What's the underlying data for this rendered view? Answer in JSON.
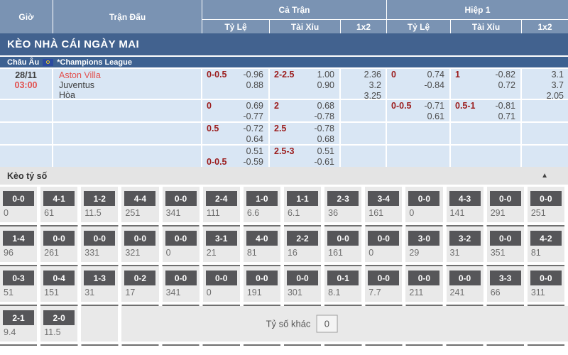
{
  "table_header": {
    "time": "Giờ",
    "match": "Trận Đấu",
    "full_match": "Cả Trận",
    "first_half": "Hiệp 1",
    "handicap": "Tỷ Lệ",
    "over_under": "Tài Xỉu",
    "one_x_two": "1x2"
  },
  "banner": {
    "title": "KÈO NHÀ CÁI NGÀY MAI"
  },
  "league": {
    "region": "Châu Âu",
    "flag": "eu-flag",
    "name": "*Champions League"
  },
  "match": {
    "date": "28/11",
    "time": "03:00",
    "home": "Aston Villa",
    "away": "Juventus",
    "draw": "Hòa"
  },
  "odds": {
    "rows": [
      {
        "ft_hc": {
          "l1": {
            "label": "0-0.5",
            "value": "-0.96"
          },
          "l2": {
            "label": "",
            "value": "0.88"
          }
        },
        "ft_ou": {
          "l1": {
            "label": "2-2.5",
            "value": "1.00"
          },
          "l2": {
            "label": "",
            "value": "0.90"
          }
        },
        "ft_x12": {
          "v1": "2.36",
          "v2": "3.2",
          "v3": "3.25"
        },
        "h1_hc": {
          "l1": {
            "label": "0",
            "value": "0.74"
          },
          "l2": {
            "label": "",
            "value": "-0.84"
          }
        },
        "h1_ou": {
          "l1": {
            "label": "1",
            "value": "-0.82"
          },
          "l2": {
            "label": "",
            "value": "0.72"
          }
        },
        "h1_x12": {
          "v1": "3.1",
          "v2": "3.7",
          "v3": "2.05"
        }
      },
      {
        "ft_hc": {
          "l1": {
            "label": "0",
            "value": "0.69"
          },
          "l2": {
            "label": "",
            "value": "-0.77"
          }
        },
        "ft_ou": {
          "l1": {
            "label": "2",
            "value": "0.68"
          },
          "l2": {
            "label": "",
            "value": "-0.78"
          }
        },
        "h1_hc": {
          "l1": {
            "label": "0-0.5",
            "value": "-0.71"
          },
          "l2": {
            "label": "",
            "value": "0.61"
          }
        },
        "h1_ou": {
          "l1": {
            "label": "0.5-1",
            "value": "-0.81"
          },
          "l2": {
            "label": "",
            "value": "0.71"
          }
        }
      },
      {
        "ft_hc": {
          "l1": {
            "label": "0.5",
            "value": "-0.72"
          },
          "l2": {
            "label": "",
            "value": "0.64"
          }
        },
        "ft_ou": {
          "l1": {
            "label": "2.5",
            "value": "-0.78"
          },
          "l2": {
            "label": "",
            "value": "0.68"
          }
        }
      },
      {
        "ft_hc": {
          "l1": {
            "label": "",
            "value": "0.51"
          },
          "l2": {
            "label": "0-0.5",
            "value": "-0.59"
          }
        },
        "ft_ou": {
          "l1": {
            "label": "2.5-3",
            "value": "0.51"
          },
          "l2": {
            "label": "",
            "value": "-0.61"
          }
        }
      }
    ]
  },
  "score_section": {
    "title": "Kèo tỷ số",
    "collapse_icon": "▲",
    "other_label": "Tỷ số khác",
    "other_value": "0",
    "rows": [
      [
        [
          "0-0",
          "0"
        ],
        [
          "4-1",
          "61"
        ],
        [
          "1-2",
          "11.5"
        ],
        [
          "4-4",
          "251"
        ],
        [
          "0-0",
          "341"
        ],
        [
          "2-4",
          "111"
        ],
        [
          "1-0",
          "6.6"
        ],
        [
          "1-1",
          "6.1"
        ],
        [
          "2-3",
          "36"
        ],
        [
          "3-4",
          "161"
        ],
        [
          "0-0",
          "0"
        ],
        [
          "4-3",
          "141"
        ],
        [
          "0-0",
          "291"
        ],
        [
          "0-0",
          "251"
        ]
      ],
      [
        [
          "1-4",
          "96"
        ],
        [
          "0-0",
          "261"
        ],
        [
          "0-0",
          "331"
        ],
        [
          "0-0",
          "321"
        ],
        [
          "0-0",
          "0"
        ],
        [
          "3-1",
          "21"
        ],
        [
          "4-0",
          "81"
        ],
        [
          "2-2",
          "16"
        ],
        [
          "0-0",
          "161"
        ],
        [
          "0-0",
          "0"
        ],
        [
          "3-0",
          "29"
        ],
        [
          "3-2",
          "31"
        ],
        [
          "0-0",
          "351"
        ],
        [
          "4-2",
          "81"
        ]
      ],
      [
        [
          "0-3",
          "51"
        ],
        [
          "0-4",
          "151"
        ],
        [
          "1-3",
          "31"
        ],
        [
          "0-2",
          "17"
        ],
        [
          "0-0",
          "341"
        ],
        [
          "0-0",
          "0"
        ],
        [
          "0-0",
          "191"
        ],
        [
          "0-0",
          "301"
        ],
        [
          "0-1",
          "8.1"
        ],
        [
          "0-0",
          "7.7"
        ],
        [
          "0-0",
          "211"
        ],
        [
          "0-0",
          "241"
        ],
        [
          "3-3",
          "66"
        ],
        [
          "0-0",
          "311"
        ]
      ],
      [
        [
          "2-1",
          "9.4"
        ],
        [
          "2-0",
          "11.5"
        ]
      ]
    ]
  },
  "colors": {
    "header_bg": "#7a93b3",
    "banner_bg": "#42628f",
    "league_bg": "#3d6191",
    "row_bg": "#d9e6f4",
    "label_red": "#9b1c1c",
    "value_gray": "#4a4a4a",
    "time_red": "#e2514f",
    "section_bg": "#e4e4e4",
    "grid_cell": "#e9e9e9",
    "box_bg": "#565659",
    "box_val": "#6f6f6f",
    "line_dark": "#6f6f6f"
  }
}
